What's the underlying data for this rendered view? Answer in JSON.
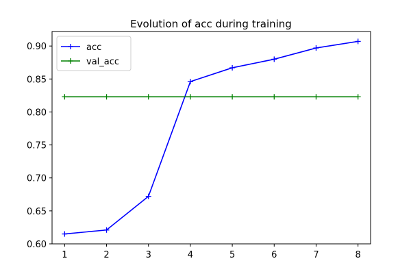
{
  "chart_data": {
    "type": "line",
    "title": "Evolution of acc during training",
    "xlabel": "",
    "ylabel": "",
    "x": [
      1,
      2,
      3,
      4,
      5,
      6,
      7,
      8
    ],
    "xlim": [
      0.7,
      8.3
    ],
    "ylim": [
      0.6,
      0.922
    ],
    "xticks": [
      "1",
      "2",
      "3",
      "4",
      "5",
      "6",
      "7",
      "8"
    ],
    "yticks": [
      "0.60",
      "0.65",
      "0.70",
      "0.75",
      "0.80",
      "0.85",
      "0.90"
    ],
    "grid": false,
    "legend_position": "top-left",
    "series": [
      {
        "name": "acc",
        "color": "#0000ff",
        "marker": "+",
        "values": [
          0.615,
          0.621,
          0.672,
          0.846,
          0.867,
          0.88,
          0.897,
          0.907
        ]
      },
      {
        "name": "val_acc",
        "color": "#008000",
        "marker": "+",
        "values": [
          0.823,
          0.823,
          0.823,
          0.823,
          0.823,
          0.823,
          0.823,
          0.823
        ]
      }
    ]
  }
}
